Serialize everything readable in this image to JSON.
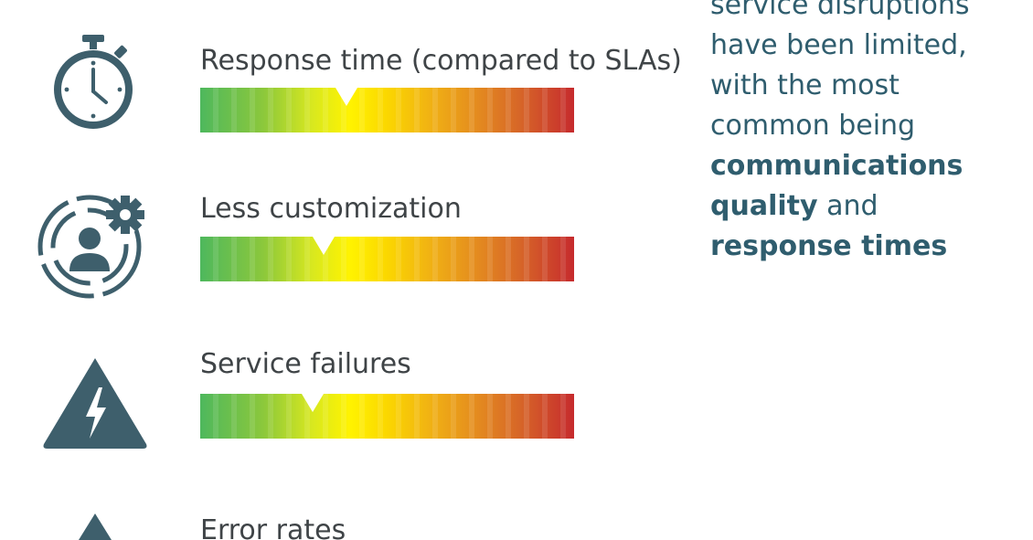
{
  "metrics": [
    {
      "label": "Response time (compared to SLAs)",
      "icon": "stopwatch-icon",
      "level": 0.39
    },
    {
      "label": "Less customization",
      "icon": "user-gear-icon",
      "level": 0.33
    },
    {
      "label": "Service failures",
      "icon": "warning-lightning-icon",
      "level": 0.3
    },
    {
      "label": "Error rates",
      "icon": "warning-icon"
    }
  ],
  "callout": {
    "line1": "service disruptions",
    "line2": "have been limited,",
    "line3": "with the most",
    "line4": "common being",
    "bold1": "communications",
    "bold2": "quality",
    "line6_rest": " and",
    "bold3": "response times"
  },
  "colors": {
    "icon": "#3e5f6c",
    "text": "#3f4447",
    "callout_text": "#2f5d6e",
    "gradient_start": "#4eb85d",
    "gradient_mid": "#fff300",
    "gradient_end": "#c62a2d"
  }
}
